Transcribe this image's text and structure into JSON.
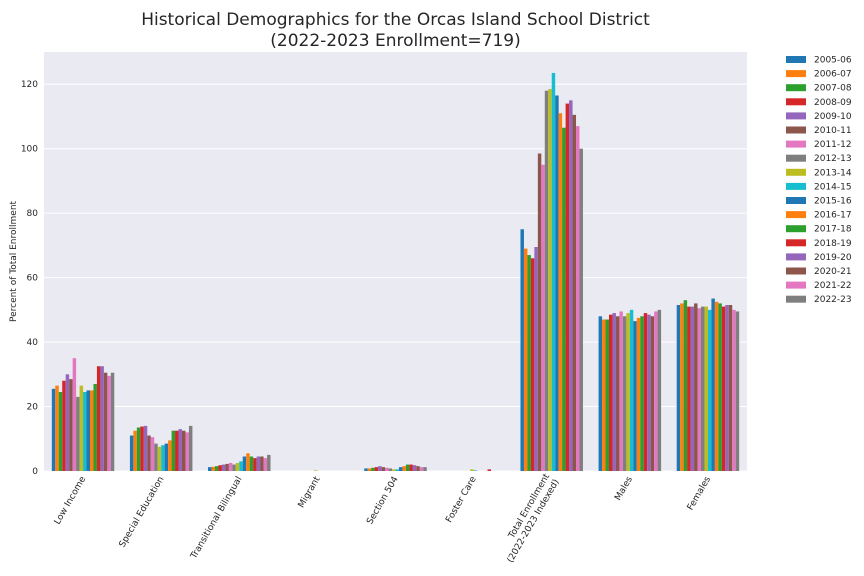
{
  "chart_data": {
    "type": "bar",
    "title": [
      "Historical Demographics for the Orcas Island School District",
      "(2022-2023 Enrollment=719)"
    ],
    "xlabel": "",
    "ylabel": "Percent of Total Enrollment",
    "ylim": [
      0,
      130
    ],
    "yticks": [
      0,
      20,
      40,
      60,
      80,
      100,
      120
    ],
    "grid": true,
    "legend_position": "outside-right",
    "categories": [
      [
        "Low Income"
      ],
      [
        "Special Education"
      ],
      [
        "Transitional Bilingual"
      ],
      [
        "Migrant"
      ],
      [
        "Section 504"
      ],
      [
        "Foster Care"
      ],
      [
        "Total Enrollment",
        "(2022-2023 Indexed)"
      ],
      [
        "Males"
      ],
      [
        "Females"
      ]
    ],
    "series": [
      {
        "name": "2005-06",
        "color": "#1f77b4",
        "values": [
          25.5,
          11.0,
          1.2,
          0,
          0.8,
          0,
          75.0,
          48.0,
          51.5
        ]
      },
      {
        "name": "2006-07",
        "color": "#ff7f0e",
        "values": [
          26.5,
          12.5,
          1.3,
          0,
          0.8,
          0,
          69.0,
          47.0,
          52.0
        ]
      },
      {
        "name": "2007-08",
        "color": "#2ca02c",
        "values": [
          24.5,
          13.5,
          1.5,
          0,
          1.0,
          0,
          67.0,
          47.0,
          53.0
        ]
      },
      {
        "name": "2008-09",
        "color": "#d62728",
        "values": [
          28.0,
          13.8,
          1.8,
          0,
          1.2,
          0,
          66.0,
          48.5,
          51.0
        ]
      },
      {
        "name": "2009-10",
        "color": "#9467bd",
        "values": [
          30.0,
          14.0,
          2.0,
          0,
          1.5,
          0,
          69.5,
          49.0,
          51.0
        ]
      },
      {
        "name": "2010-11",
        "color": "#8c564b",
        "values": [
          28.5,
          11.0,
          2.2,
          0,
          1.2,
          0,
          98.5,
          48.0,
          52.0
        ]
      },
      {
        "name": "2011-12",
        "color": "#e377c2",
        "values": [
          35.0,
          10.5,
          2.5,
          0,
          1.0,
          0,
          95.0,
          49.5,
          50.5
        ]
      },
      {
        "name": "2012-13",
        "color": "#7f7f7f",
        "values": [
          23.0,
          8.5,
          2.0,
          0,
          0.8,
          0,
          118.0,
          48.0,
          51.0
        ]
      },
      {
        "name": "2013-14",
        "color": "#bcbd22",
        "values": [
          26.5,
          7.5,
          2.5,
          0.2,
          0.5,
          0.5,
          118.5,
          49.0,
          51.0
        ]
      },
      {
        "name": "2014-15",
        "color": "#17becf",
        "values": [
          24.5,
          8.0,
          3.0,
          0,
          0.5,
          0.2,
          123.5,
          50.0,
          50.0
        ]
      },
      {
        "name": "2015-16",
        "color": "#1f77b4",
        "values": [
          25.0,
          8.5,
          4.5,
          0,
          1.2,
          0,
          116.5,
          46.5,
          53.5
        ]
      },
      {
        "name": "2016-17",
        "color": "#ff7f0e",
        "values": [
          25.0,
          9.5,
          5.5,
          0,
          1.5,
          0,
          111.0,
          47.5,
          52.5
        ]
      },
      {
        "name": "2017-18",
        "color": "#2ca02c",
        "values": [
          27.0,
          12.5,
          4.5,
          0,
          2.0,
          0,
          106.5,
          48.0,
          52.0
        ]
      },
      {
        "name": "2018-19",
        "color": "#d62728",
        "values": [
          32.5,
          12.5,
          4.0,
          0,
          2.0,
          0.5,
          114.0,
          49.0,
          51.0
        ]
      },
      {
        "name": "2019-20",
        "color": "#9467bd",
        "values": [
          32.5,
          13.0,
          4.5,
          0,
          1.8,
          0,
          115.0,
          48.5,
          51.5
        ]
      },
      {
        "name": "2020-21",
        "color": "#8c564b",
        "values": [
          30.5,
          12.5,
          4.5,
          0,
          1.5,
          0,
          110.5,
          48.0,
          51.5
        ]
      },
      {
        "name": "2021-22",
        "color": "#e377c2",
        "values": [
          29.5,
          12.0,
          4.0,
          0,
          1.2,
          0,
          107.0,
          49.5,
          50.0
        ]
      },
      {
        "name": "2022-23",
        "color": "#7f7f7f",
        "values": [
          30.5,
          14.0,
          5.0,
          0,
          1.2,
          0,
          100.0,
          50.0,
          49.5
        ]
      }
    ]
  }
}
